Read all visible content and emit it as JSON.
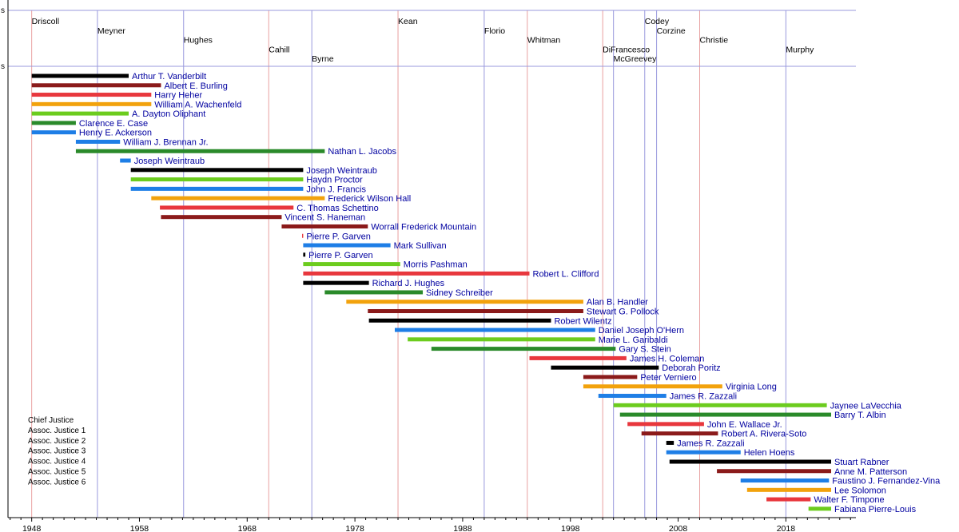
{
  "chart_data": {
    "type": "timeline",
    "x_axis": {
      "range": [
        1945.8,
        2024.5
      ],
      "ticks": [
        1948,
        1958,
        1968,
        1978,
        1988,
        1998,
        2008,
        2018
      ]
    },
    "truncated_labels": [
      "s",
      "s"
    ],
    "colors": {
      "chief": "#000000",
      "aj1": "#8b1a1a",
      "aj2": "#e8373d",
      "aj3": "#f2a20c",
      "aj4": "#6ccc1e",
      "aj5": "#2a8a2a",
      "aj6": "#1e7ee6",
      "label": "#0000a0",
      "governor_line": "#9999dd",
      "party_line": "#e8a0a0"
    },
    "legend": [
      {
        "label": "Chief Justice",
        "role": "chief"
      },
      {
        "label": "Assoc. Justice 1",
        "role": "aj1"
      },
      {
        "label": "Assoc. Justice 2",
        "role": "aj2"
      },
      {
        "label": "Assoc. Justice 3",
        "role": "aj3"
      },
      {
        "label": "Assoc. Justice 4",
        "role": "aj4"
      },
      {
        "label": "Assoc. Justice 5",
        "role": "aj5"
      },
      {
        "label": "Assoc. Justice 6",
        "role": "aj6"
      }
    ],
    "governors": [
      {
        "name": "Driscoll",
        "start": 1948.0,
        "row": 0,
        "line": "party"
      },
      {
        "name": "Meyner",
        "start": 1954.1,
        "row": 1,
        "line": "governor"
      },
      {
        "name": "Hughes",
        "start": 1962.1,
        "row": 2,
        "line": "governor"
      },
      {
        "name": "Cahill",
        "start": 1970.0,
        "row": 3,
        "line": "party"
      },
      {
        "name": "Byrne",
        "start": 1974.0,
        "row": 4,
        "line": "governor"
      },
      {
        "name": "Kean",
        "start": 1982.0,
        "row": 0,
        "line": "party"
      },
      {
        "name": "Florio",
        "start": 1990.0,
        "row": 1,
        "line": "governor"
      },
      {
        "name": "Whitman",
        "start": 1994.0,
        "row": 2,
        "line": "party"
      },
      {
        "name": "DiFrancesco",
        "start": 2001.0,
        "row": 3,
        "line": "party"
      },
      {
        "name": "McGreevey",
        "start": 2002.0,
        "row": 4,
        "line": "governor"
      },
      {
        "name": "Codey",
        "start": 2004.9,
        "row": 0,
        "line": "governor"
      },
      {
        "name": "Corzine",
        "start": 2006.0,
        "row": 1,
        "line": "governor"
      },
      {
        "name": "Christie",
        "start": 2010.0,
        "row": 2,
        "line": "party"
      },
      {
        "name": "Murphy",
        "start": 2018.0,
        "row": 3,
        "line": "governor"
      }
    ],
    "justices": [
      {
        "name": "Arthur T. Vanderbilt",
        "role": "chief",
        "start": 1948.0,
        "end": 1957.0
      },
      {
        "name": "Albert E. Burling",
        "role": "aj1",
        "start": 1948.0,
        "end": 1960.0
      },
      {
        "name": "Harry Heher",
        "role": "aj2",
        "start": 1948.0,
        "end": 1959.1
      },
      {
        "name": "William A. Wachenfeld",
        "role": "aj3",
        "start": 1948.0,
        "end": 1959.1
      },
      {
        "name": "A. Dayton Oliphant",
        "role": "aj4",
        "start": 1948.0,
        "end": 1957.0
      },
      {
        "name": "Clarence E. Case",
        "role": "aj5",
        "start": 1948.0,
        "end": 1952.1
      },
      {
        "name": "Henry E. Ackerson",
        "role": "aj6",
        "start": 1948.0,
        "end": 1952.1
      },
      {
        "name": "William J. Brennan Jr.",
        "role": "aj6",
        "start": 1952.1,
        "end": 1956.2
      },
      {
        "name": "Nathan L. Jacobs",
        "role": "aj5",
        "start": 1952.1,
        "end": 1975.2
      },
      {
        "name": "Joseph Weintraub",
        "role": "aj6",
        "start": 1956.2,
        "end": 1957.2
      },
      {
        "name": "Joseph Weintraub",
        "role": "chief",
        "start": 1957.2,
        "end": 1973.2
      },
      {
        "name": "Haydn Proctor",
        "role": "aj4",
        "start": 1957.2,
        "end": 1973.2
      },
      {
        "name": "John J. Francis",
        "role": "aj6",
        "start": 1957.2,
        "end": 1973.2
      },
      {
        "name": "Frederick Wilson Hall",
        "role": "aj3",
        "start": 1959.1,
        "end": 1975.2
      },
      {
        "name": "C. Thomas Schettino",
        "role": "aj2",
        "start": 1959.9,
        "end": 1972.3
      },
      {
        "name": "Vincent S. Haneman",
        "role": "aj1",
        "start": 1960.0,
        "end": 1971.2
      },
      {
        "name": "Worrall Frederick Mountain",
        "role": "aj1",
        "start": 1971.2,
        "end": 1979.2
      },
      {
        "name": "Pierre P. Garven",
        "role": "aj2",
        "start": 1973.1,
        "end": 1973.2
      },
      {
        "name": "Mark Sullivan",
        "role": "aj6",
        "start": 1973.2,
        "end": 1981.3
      },
      {
        "name": "Pierre P. Garven",
        "role": "chief",
        "start": 1973.2,
        "end": 1973.4
      },
      {
        "name": "Morris Pashman",
        "role": "aj4",
        "start": 1973.2,
        "end": 1982.2
      },
      {
        "name": "Robert L. Clifford",
        "role": "aj2",
        "start": 1973.2,
        "end": 1994.2
      },
      {
        "name": "Richard J. Hughes",
        "role": "chief",
        "start": 1973.2,
        "end": 1979.3
      },
      {
        "name": "Sidney Schreiber",
        "role": "aj5",
        "start": 1975.2,
        "end": 1984.3
      },
      {
        "name": "Alan B. Handler",
        "role": "aj3",
        "start": 1977.2,
        "end": 1999.2
      },
      {
        "name": "Stewart G. Pollock",
        "role": "aj1",
        "start": 1979.2,
        "end": 1999.2
      },
      {
        "name": "Robert Wilentz",
        "role": "chief",
        "start": 1979.3,
        "end": 1996.2
      },
      {
        "name": "Daniel Joseph O'Hern",
        "role": "aj6",
        "start": 1981.7,
        "end": 2000.3
      },
      {
        "name": "Marie L. Garibaldi",
        "role": "aj4",
        "start": 1982.9,
        "end": 2000.3
      },
      {
        "name": "Gary S. Stein",
        "role": "aj5",
        "start": 1985.1,
        "end": 2002.2
      },
      {
        "name": "James H. Coleman",
        "role": "aj2",
        "start": 1994.2,
        "end": 2003.2
      },
      {
        "name": "Deborah Poritz",
        "role": "chief",
        "start": 1996.2,
        "end": 2006.2
      },
      {
        "name": "Peter Verniero",
        "role": "aj1",
        "start": 1999.2,
        "end": 2004.2
      },
      {
        "name": "Virginia Long",
        "role": "aj3",
        "start": 1999.2,
        "end": 2012.1
      },
      {
        "name": "James R. Zazzali",
        "role": "aj6",
        "start": 2000.6,
        "end": 2006.9
      },
      {
        "name": "Jaynee LaVecchia",
        "role": "aj4",
        "start": 2002.0,
        "end": 2021.8
      },
      {
        "name": "Barry T. Albin",
        "role": "aj5",
        "start": 2002.6,
        "end": 2022.2
      },
      {
        "name": "John E. Wallace Jr.",
        "role": "aj2",
        "start": 2003.3,
        "end": 2010.4
      },
      {
        "name": "Robert A. Rivera-Soto",
        "role": "aj1",
        "start": 2004.6,
        "end": 2011.7
      },
      {
        "name": "James R. Zazzali",
        "role": "chief",
        "start": 2006.9,
        "end": 2007.6
      },
      {
        "name": "Helen Hoens",
        "role": "aj6",
        "start": 2006.9,
        "end": 2013.8
      },
      {
        "name": "Stuart Rabner",
        "role": "chief",
        "start": 2007.2,
        "end": 2022.2
      },
      {
        "name": "Anne M. Patterson",
        "role": "aj1",
        "start": 2011.6,
        "end": 2022.2
      },
      {
        "name": "Faustino J. Fernandez-Vina",
        "role": "aj6",
        "start": 2013.8,
        "end": 2022.0
      },
      {
        "name": "Lee Solomon",
        "role": "aj3",
        "start": 2014.4,
        "end": 2022.2
      },
      {
        "name": "Walter F. Timpone",
        "role": "aj2",
        "start": 2016.2,
        "end": 2020.3
      },
      {
        "name": "Fabiana Pierre-Louis",
        "role": "aj4",
        "start": 2020.1,
        "end": 2022.2
      }
    ]
  }
}
